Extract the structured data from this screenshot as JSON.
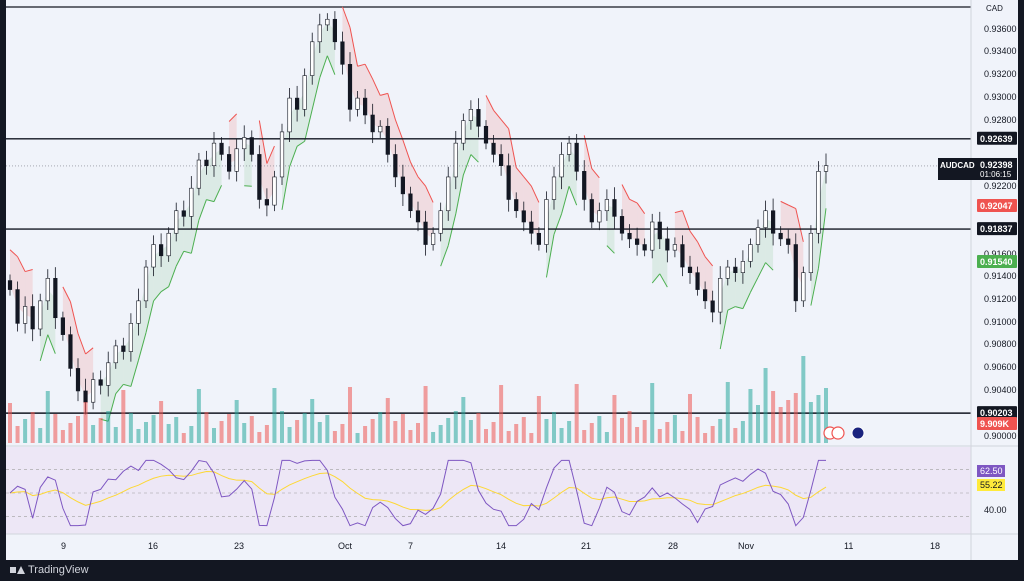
{
  "chart_data": {
    "type": "candlestick",
    "symbol": "AUDCAD",
    "currency": "CAD",
    "y_ticks": [
      "0.93600",
      "0.93400",
      "0.93200",
      "0.93000",
      "0.92800",
      "0.92200",
      "0.91600",
      "0.91400",
      "0.91200",
      "0.91000",
      "0.90800",
      "0.90600",
      "0.90400",
      "0.90000"
    ],
    "x_ticks": [
      "9",
      "16",
      "23",
      "Oct",
      "7",
      "14",
      "21",
      "28",
      "Nov",
      "11",
      "18"
    ],
    "ylim": [
      0.9,
      0.938
    ],
    "horizontal_levels": [
      "0.92639",
      "0.91837",
      "0.90203"
    ],
    "current_price": {
      "value": "0.92398",
      "countdown": "01:06:15"
    },
    "supertrend_upper_label": "0.92047",
    "supertrend_lower_label": "0.91540",
    "volume_label": "9.909K",
    "closes": [
      0.913,
      0.91,
      0.9115,
      0.9095,
      0.912,
      0.914,
      0.9105,
      0.909,
      0.906,
      0.904,
      0.903,
      0.905,
      0.9045,
      0.9065,
      0.908,
      0.9075,
      0.91,
      0.912,
      0.915,
      0.917,
      0.916,
      0.918,
      0.92,
      0.9195,
      0.922,
      0.9245,
      0.924,
      0.926,
      0.925,
      0.9235,
      0.9255,
      0.9265,
      0.925,
      0.921,
      0.9205,
      0.923,
      0.927,
      0.93,
      0.929,
      0.932,
      0.935,
      0.9365,
      0.937,
      0.935,
      0.933,
      0.929,
      0.93,
      0.9285,
      0.927,
      0.9275,
      0.925,
      0.923,
      0.9215,
      0.92,
      0.919,
      0.917,
      0.918,
      0.92,
      0.923,
      0.926,
      0.928,
      0.929,
      0.9275,
      0.926,
      0.925,
      0.924,
      0.921,
      0.92,
      0.919,
      0.918,
      0.917,
      0.921,
      0.923,
      0.925,
      0.926,
      0.9235,
      0.921,
      0.919,
      0.92,
      0.921,
      0.9195,
      0.918,
      0.9175,
      0.917,
      0.9165,
      0.919,
      0.9175,
      0.9165,
      0.917,
      0.915,
      0.9145,
      0.913,
      0.912,
      0.911,
      0.914,
      0.915,
      0.9145,
      0.9155,
      0.917,
      0.9185,
      0.92,
      0.918,
      0.9175,
      0.917,
      0.912,
      0.9145,
      0.918,
      0.9235,
      0.924
    ],
    "rsi": {
      "value_label": "62.50",
      "ma_label": "55.22",
      "tick": "40.00"
    }
  },
  "footer": {
    "brand": "TradingView"
  },
  "colors": {
    "bull": "#26a69a",
    "bear": "#ef5350",
    "rsi": "#7e57c2",
    "rsi_ma": "#fdd835",
    "level": "#131722"
  }
}
